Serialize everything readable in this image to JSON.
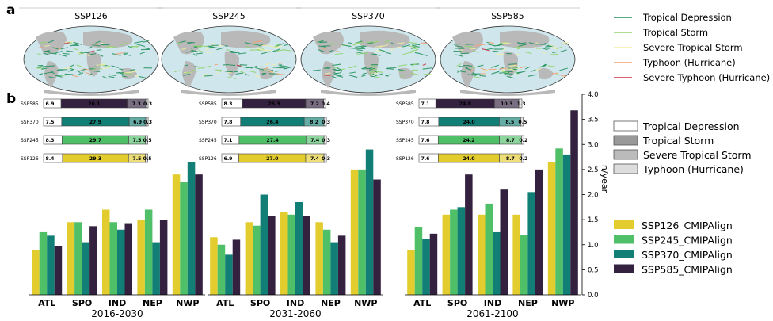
{
  "panel_labels": {
    "a": "a",
    "b": "b"
  },
  "maps": {
    "titles": [
      "SSP126",
      "SSP245",
      "SSP370",
      "SSP585"
    ],
    "colors": {
      "ocean": "#cfe6ec",
      "land": "#b9b9b9"
    }
  },
  "track_legend": {
    "items": [
      {
        "label": "Tropical Depression",
        "color": "#1f8f5a"
      },
      {
        "label": "Tropical Storm",
        "color": "#8fd36a"
      },
      {
        "label": "Severe Tropical Storm",
        "color": "#f0f0a0"
      },
      {
        "label": "Typhoon (Hurricane)",
        "color": "#f4a070"
      },
      {
        "label": "Severe Typhoon (Hurricane)",
        "color": "#c83040"
      }
    ]
  },
  "intensity_legend": {
    "items": [
      {
        "label": "Tropical Depression",
        "fill": "#ffffff"
      },
      {
        "label": "Tropical Storm",
        "fill": "#999999"
      },
      {
        "label": "Severe Tropical Storm",
        "fill": "#bbbbbb"
      },
      {
        "label": "Typhoon (Hurricane)",
        "fill": "#dddddd"
      }
    ]
  },
  "scenario_legend": {
    "items": [
      {
        "label": "SSP126_CMIPAlign",
        "color": "#e3cc2e"
      },
      {
        "label": "SSP245_CMIPAlign",
        "color": "#4fbf68"
      },
      {
        "label": "SSP370_CMIPAlign",
        "color": "#117f76"
      },
      {
        "label": "SSP585_CMIPAlign",
        "color": "#33213f"
      }
    ]
  },
  "chart_data": [
    {
      "type": "bar",
      "title": "2016-2030",
      "categories": [
        "ATL",
        "SPO",
        "IND",
        "NEP",
        "NWP"
      ],
      "series": [
        {
          "name": "SSP126_CMIPAlign",
          "values": [
            0.9,
            1.45,
            1.7,
            1.5,
            2.4
          ]
        },
        {
          "name": "SSP245_CMIPAlign",
          "values": [
            1.25,
            1.45,
            1.45,
            1.7,
            2.25
          ]
        },
        {
          "name": "SSP370_CMIPAlign",
          "values": [
            1.18,
            1.05,
            1.3,
            1.05,
            2.65
          ]
        },
        {
          "name": "SSP585_CMIPAlign",
          "values": [
            0.98,
            1.37,
            1.43,
            1.5,
            2.4
          ]
        }
      ],
      "ylim": [
        0,
        4.0
      ],
      "inset": {
        "rows": [
          {
            "label": "SSP585",
            "values": [
              "6.9",
              "26.1",
              "7.3",
              "0.3"
            ]
          },
          {
            "label": "SSP370",
            "values": [
              "7.5",
              "27.9",
              "6.9",
              "0.3"
            ]
          },
          {
            "label": "SSP245",
            "values": [
              "8.3",
              "29.7",
              "7.5",
              "0.5"
            ]
          },
          {
            "label": "SSP126",
            "values": [
              "8.4",
              "29.3",
              "7.5",
              "0.5"
            ]
          }
        ]
      }
    },
    {
      "type": "bar",
      "title": "2031-2060",
      "categories": [
        "ATL",
        "SPO",
        "IND",
        "NEP",
        "NWP"
      ],
      "series": [
        {
          "name": "SSP126_CMIPAlign",
          "values": [
            1.15,
            1.45,
            1.65,
            1.45,
            2.5
          ]
        },
        {
          "name": "SSP245_CMIPAlign",
          "values": [
            1.0,
            1.38,
            1.6,
            1.3,
            2.5
          ]
        },
        {
          "name": "SSP370_CMIPAlign",
          "values": [
            0.8,
            2.0,
            1.85,
            1.05,
            2.9
          ]
        },
        {
          "name": "SSP585_CMIPAlign",
          "values": [
            1.1,
            1.58,
            1.58,
            1.18,
            2.3
          ]
        }
      ],
      "ylim": [
        0,
        4.0
      ],
      "inset": {
        "rows": [
          {
            "label": "SSP585",
            "values": [
              "8.3",
              "25.3",
              "7.2",
              "0.4"
            ]
          },
          {
            "label": "SSP370",
            "values": [
              "7.8",
              "26.4",
              "8.2",
              "0.3"
            ]
          },
          {
            "label": "SSP245",
            "values": [
              "7.1",
              "27.4",
              "7.4",
              "0.3"
            ]
          },
          {
            "label": "SSP126",
            "values": [
              "6.9",
              "27.0",
              "7.4",
              "0.3"
            ]
          }
        ]
      }
    },
    {
      "type": "bar",
      "title": "2061-2100",
      "categories": [
        "ATL",
        "SPO",
        "IND",
        "NEP",
        "NWP"
      ],
      "series": [
        {
          "name": "SSP126_CMIPAlign",
          "values": [
            0.9,
            1.6,
            1.6,
            1.6,
            2.65
          ]
        },
        {
          "name": "SSP245_CMIPAlign",
          "values": [
            1.35,
            1.7,
            1.82,
            1.2,
            2.92
          ]
        },
        {
          "name": "SSP370_CMIPAlign",
          "values": [
            1.12,
            1.75,
            1.25,
            2.05,
            2.8
          ]
        },
        {
          "name": "SSP585_CMIPAlign",
          "values": [
            1.22,
            2.4,
            2.1,
            2.5,
            3.68
          ]
        }
      ],
      "ylim": [
        0,
        4.0
      ],
      "inset": {
        "rows": [
          {
            "label": "SSP585",
            "values": [
              "7.1",
              "24.8",
              "10.3",
              "1.3"
            ]
          },
          {
            "label": "SSP370",
            "values": [
              "7.8",
              "24.0",
              "8.5",
              "0.5"
            ]
          },
          {
            "label": "SSP245",
            "values": [
              "7.6",
              "24.2",
              "8.7",
              "0.2"
            ]
          },
          {
            "label": "SSP126",
            "values": [
              "7.6",
              "24.0",
              "8.7",
              "0.2"
            ]
          }
        ]
      }
    }
  ],
  "y_axis": {
    "label": "n/year",
    "ticks": [
      "0.0",
      "0.5",
      "1.0",
      "1.5",
      "2.0",
      "2.5",
      "3.0",
      "3.5",
      "4.0"
    ]
  }
}
